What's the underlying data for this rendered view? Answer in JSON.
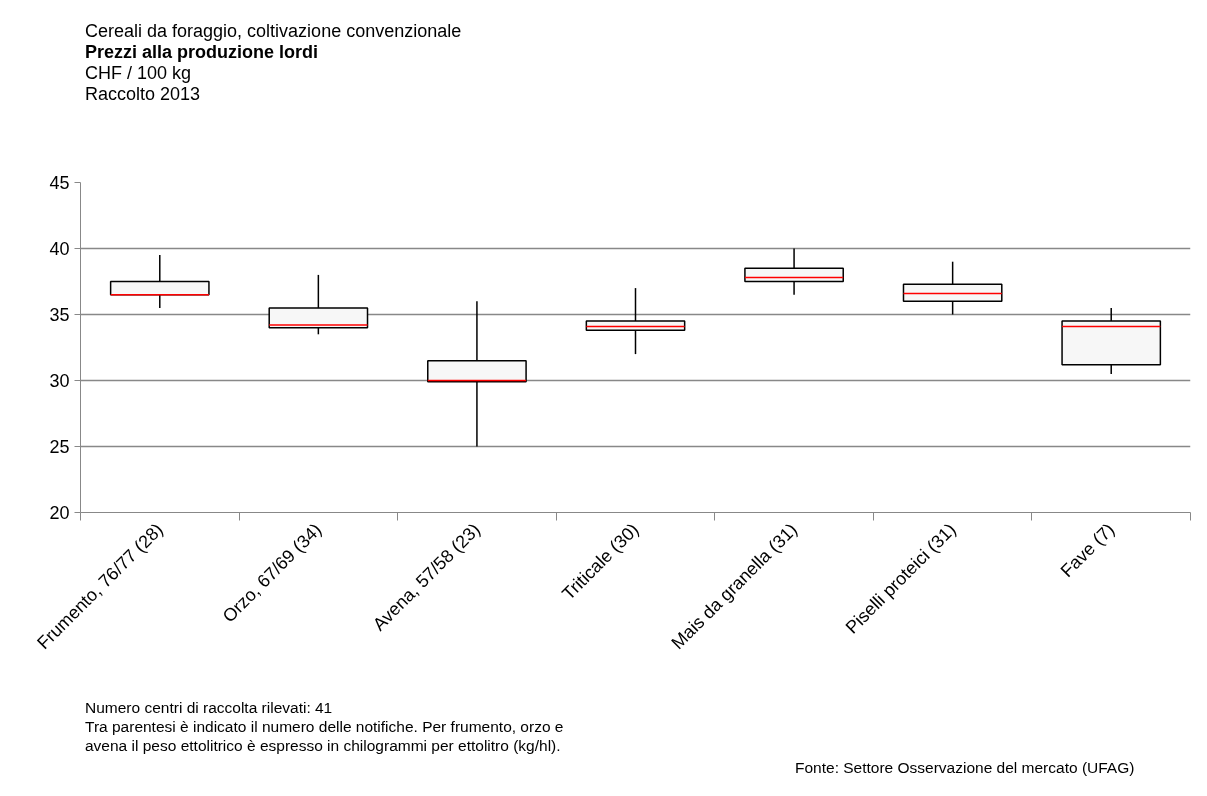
{
  "chart_data": {
    "type": "box",
    "subtitle": "Cereali da foraggio, coltivazione convenzionale",
    "title": "Prezzi alla produzione lordi",
    "ylabel": "CHF / 100 kg",
    "categories": [
      "Frumento, 76/77 (28)",
      "Orzo, 67/69 (34)",
      "Avena, 57/58 (23)",
      "Triticale (30)",
      "Mais da granella (31)",
      "Piselli proteici (31)",
      "Fave (7)"
    ],
    "boxes": [
      {
        "low": 35.5,
        "q1": 36.5,
        "median": 36.5,
        "q3": 37.5,
        "high": 39.5
      },
      {
        "low": 33.5,
        "q1": 34,
        "median": 34.2,
        "q3": 35.5,
        "high": 38
      },
      {
        "low": 25,
        "q1": 29.9,
        "median": 30,
        "q3": 31.5,
        "high": 36
      },
      {
        "low": 32,
        "q1": 33.8,
        "median": 34.1,
        "q3": 34.5,
        "high": 37
      },
      {
        "low": 36.5,
        "q1": 37.5,
        "median": 37.8,
        "q3": 38.5,
        "high": 40
      },
      {
        "low": 35,
        "q1": 36,
        "median": 36.6,
        "q3": 37.3,
        "high": 39
      },
      {
        "low": 30.5,
        "q1": 31.2,
        "median": 34.1,
        "q3": 34.5,
        "high": 35.5
      }
    ],
    "ylim": [
      20,
      45
    ],
    "yticks": [
      20,
      25,
      30,
      35,
      40,
      45
    ],
    "grid": "y",
    "annotations": [
      "Raccolto 2013",
      "Numero centri di raccolta rilevati: 41",
      "Tra parentesi è indicato il numero delle notifiche. Per frumento, orzo e avena il peso ettolitrico è espresso in chilogrammi per ettolitro (kg/hl).",
      "Fonte: Settore Osservazione del mercato (UFAG)"
    ]
  }
}
